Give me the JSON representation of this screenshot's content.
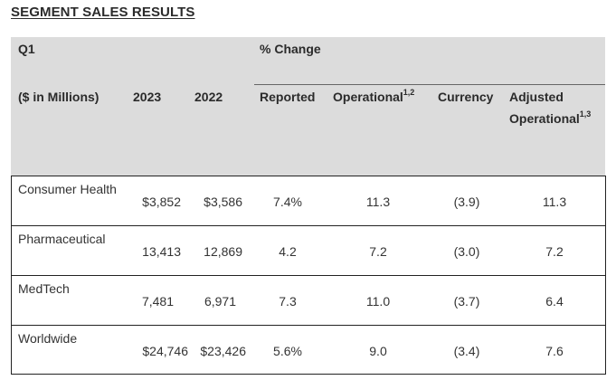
{
  "title": "SEGMENT SALES RESULTS",
  "header": {
    "q": "Q1",
    "pct_change": "% Change",
    "unit": "($ in Millions)",
    "y2023": "2023",
    "y2022": "2022",
    "reported": "Reported",
    "operational": "Operational",
    "operational_sup": "1,2",
    "currency": "Currency",
    "adjusted": "Adjusted",
    "adjusted_operational": "Operational",
    "adjusted_sup": "1,3"
  },
  "rows": [
    {
      "segment": "Consumer Health",
      "y2023": "$3,852",
      "y2022": "$3,586",
      "reported": "7.4%",
      "operational": "11.3",
      "currency": "(3.9)",
      "adjusted": "11.3"
    },
    {
      "segment": "Pharmaceutical",
      "y2023": "13,413",
      "y2022": "12,869",
      "reported": "4.2",
      "operational": "7.2",
      "currency": "(3.0)",
      "adjusted": "7.2"
    },
    {
      "segment": "MedTech",
      "y2023": "7,481",
      "y2022": "6,971",
      "reported": "7.3",
      "operational": "11.0",
      "currency": "(3.7)",
      "adjusted": "6.4"
    },
    {
      "segment": "Worldwide",
      "y2023": "$24,746",
      "y2022": "$23,426",
      "reported": "5.6%",
      "operational": "9.0",
      "currency": "(3.4)",
      "adjusted": "7.6"
    }
  ]
}
